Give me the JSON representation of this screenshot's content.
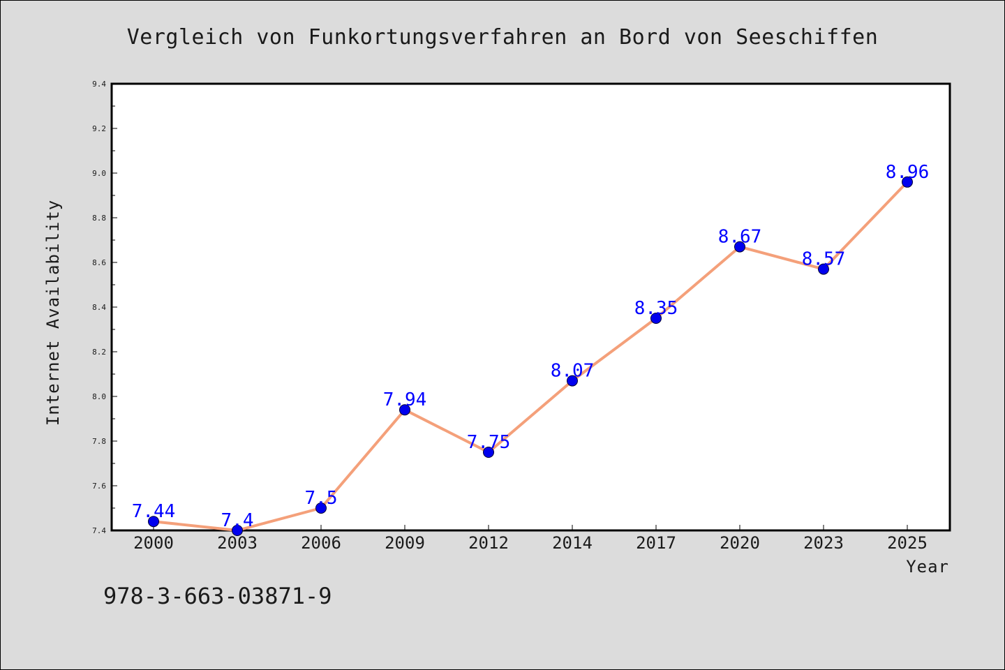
{
  "chart_data": {
    "type": "line",
    "title": "Vergleich von Funkortungsverfahren an Bord von Seeschiffen",
    "xlabel": "Year",
    "ylabel": "Internet Availability",
    "categories": [
      "2000",
      "2003",
      "2006",
      "2009",
      "2012",
      "2014",
      "2017",
      "2020",
      "2023",
      "2025"
    ],
    "series": [
      {
        "values": [
          7.44,
          7.4,
          7.5,
          7.94,
          7.75,
          8.07,
          8.35,
          8.67,
          8.57,
          8.96
        ],
        "data_labels": [
          "7.44",
          "7.4",
          "7.5",
          "7.94",
          "7.75",
          "8.07",
          "8.35",
          "8.67",
          "8.57",
          "8.96"
        ]
      }
    ],
    "ylim": [
      7.4,
      9.4
    ],
    "yticks": [
      7.4,
      7.6,
      7.8,
      8.0,
      8.2,
      8.4,
      8.6,
      8.8,
      9.0,
      9.2,
      9.4
    ],
    "ytick_labels": [
      "7.4",
      "7.6",
      "7.8",
      "8.0",
      "8.2",
      "8.4",
      "8.6",
      "8.8",
      "9.0",
      "9.2",
      "9.4"
    ],
    "grid": false,
    "legend": "none",
    "colors": {
      "line": "#f4a07a",
      "marker": "#0000ee",
      "marker_edge": "#000033",
      "data_label": "#0000ff",
      "plot_bg": "#ffffff",
      "figure_bg": "#dcdcdc"
    }
  },
  "footnote": "978-3-663-03871-9"
}
